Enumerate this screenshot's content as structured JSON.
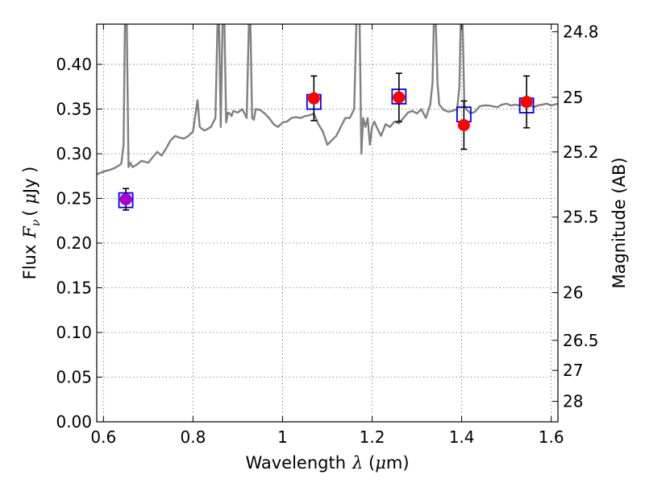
{
  "chart_data": {
    "type": "scatter",
    "xlabel": {
      "prefix": "Wavelength",
      "symbol": "λ",
      "unit_open": " (",
      "unit_mu": "μ",
      "unit_close": "m)"
    },
    "ylabel": {
      "prefix": "Flux",
      "symbol": "F",
      "sub": "ν",
      "unit_open": "( ",
      "unit_mu": "μ",
      "unit_close": "Jy )"
    },
    "y2label": "Magnitude (AB)",
    "xlim": [
      0.585,
      1.615
    ],
    "ylim": [
      0.0,
      0.445
    ],
    "grid": true,
    "x_ticks": [
      {
        "value": 0.6,
        "label": "0.6"
      },
      {
        "value": 0.8,
        "label": "0.8"
      },
      {
        "value": 1.0,
        "label": "1"
      },
      {
        "value": 1.2,
        "label": "1.2"
      },
      {
        "value": 1.4,
        "label": "1.4"
      },
      {
        "value": 1.6,
        "label": "1.6"
      }
    ],
    "y_ticks": [
      {
        "value": 0.0,
        "label": "0.00"
      },
      {
        "value": 0.05,
        "label": "0.05"
      },
      {
        "value": 0.1,
        "label": "0.10"
      },
      {
        "value": 0.15,
        "label": "0.15"
      },
      {
        "value": 0.2,
        "label": "0.20"
      },
      {
        "value": 0.25,
        "label": "0.25"
      },
      {
        "value": 0.3,
        "label": "0.30"
      },
      {
        "value": 0.35,
        "label": "0.35"
      },
      {
        "value": 0.4,
        "label": "0.40"
      }
    ],
    "y2_ticks": [
      {
        "value": 24.8,
        "label": "24.8"
      },
      {
        "value": 25.0,
        "label": "25"
      },
      {
        "value": 25.2,
        "label": "25.2"
      },
      {
        "value": 25.5,
        "label": "25.5"
      },
      {
        "value": 26.0,
        "label": "26"
      },
      {
        "value": 26.5,
        "label": "26.5"
      },
      {
        "value": 27.0,
        "label": "27"
      },
      {
        "value": 28.0,
        "label": "28"
      }
    ],
    "observed": [
      {
        "x": 0.65,
        "y": 0.249,
        "yerr": 0.012,
        "color": "#aa00cc"
      },
      {
        "x": 1.07,
        "y": 0.362,
        "yerr": 0.025,
        "color": "#ff0000"
      },
      {
        "x": 1.26,
        "y": 0.363,
        "yerr": 0.027,
        "color": "#ff0000"
      },
      {
        "x": 1.405,
        "y": 0.332,
        "yerr": 0.027,
        "color": "#ff0000"
      },
      {
        "x": 1.545,
        "y": 0.358,
        "yerr": 0.029,
        "color": "#ff0000"
      }
    ],
    "model_bands": [
      {
        "x": 0.65,
        "y": 0.248
      },
      {
        "x": 1.07,
        "y": 0.358
      },
      {
        "x": 1.26,
        "y": 0.364
      },
      {
        "x": 1.405,
        "y": 0.344
      },
      {
        "x": 1.545,
        "y": 0.354
      }
    ],
    "spectrum": {
      "color": "#808080",
      "x": [
        0.585,
        0.6,
        0.615,
        0.625,
        0.635,
        0.64,
        0.645,
        0.648,
        0.652,
        0.656,
        0.66,
        0.665,
        0.675,
        0.685,
        0.7,
        0.71,
        0.72,
        0.73,
        0.74,
        0.75,
        0.76,
        0.77,
        0.78,
        0.79,
        0.8,
        0.81,
        0.815,
        0.82,
        0.825,
        0.83,
        0.84,
        0.85,
        0.855,
        0.858,
        0.862,
        0.866,
        0.87,
        0.874,
        0.878,
        0.882,
        0.886,
        0.89,
        0.9,
        0.91,
        0.92,
        0.925,
        0.928,
        0.932,
        0.936,
        0.94,
        0.95,
        0.96,
        0.97,
        0.98,
        0.99,
        1.0,
        1.01,
        1.02,
        1.03,
        1.04,
        1.05,
        1.06,
        1.07,
        1.08,
        1.09,
        1.1,
        1.11,
        1.12,
        1.13,
        1.14,
        1.15,
        1.16,
        1.165,
        1.168,
        1.172,
        1.176,
        1.18,
        1.185,
        1.19,
        1.195,
        1.2,
        1.205,
        1.21,
        1.22,
        1.23,
        1.24,
        1.25,
        1.26,
        1.27,
        1.28,
        1.29,
        1.3,
        1.31,
        1.32,
        1.33,
        1.335,
        1.338,
        1.342,
        1.346,
        1.35,
        1.36,
        1.37,
        1.38,
        1.39,
        1.395,
        1.398,
        1.402,
        1.406,
        1.41,
        1.42,
        1.43,
        1.44,
        1.45,
        1.46,
        1.47,
        1.48,
        1.49,
        1.5,
        1.51,
        1.52,
        1.53,
        1.54,
        1.55,
        1.56,
        1.57,
        1.58,
        1.59,
        1.6,
        1.615
      ],
      "y": [
        0.277,
        0.28,
        0.282,
        0.284,
        0.287,
        0.289,
        0.31,
        0.45,
        0.45,
        0.285,
        0.29,
        0.285,
        0.288,
        0.292,
        0.29,
        0.296,
        0.302,
        0.298,
        0.306,
        0.315,
        0.32,
        0.318,
        0.317,
        0.32,
        0.325,
        0.36,
        0.33,
        0.328,
        0.326,
        0.327,
        0.33,
        0.34,
        0.45,
        0.45,
        0.33,
        0.45,
        0.45,
        0.335,
        0.346,
        0.345,
        0.342,
        0.348,
        0.346,
        0.35,
        0.34,
        0.45,
        0.45,
        0.34,
        0.338,
        0.35,
        0.349,
        0.345,
        0.34,
        0.333,
        0.33,
        0.335,
        0.336,
        0.34,
        0.341,
        0.34,
        0.342,
        0.343,
        0.345,
        0.333,
        0.325,
        0.31,
        0.315,
        0.32,
        0.33,
        0.34,
        0.34,
        0.35,
        0.45,
        0.45,
        0.45,
        0.3,
        0.34,
        0.33,
        0.34,
        0.31,
        0.33,
        0.336,
        0.33,
        0.32,
        0.333,
        0.33,
        0.336,
        0.334,
        0.34,
        0.346,
        0.348,
        0.345,
        0.35,
        0.34,
        0.355,
        0.38,
        0.45,
        0.45,
        0.38,
        0.355,
        0.349,
        0.347,
        0.348,
        0.35,
        0.375,
        0.45,
        0.45,
        0.355,
        0.35,
        0.345,
        0.347,
        0.353,
        0.354,
        0.354,
        0.353,
        0.352,
        0.355,
        0.356,
        0.354,
        0.355,
        0.354,
        0.355,
        0.356,
        0.352,
        0.354,
        0.355,
        0.356,
        0.354,
        0.356
      ]
    }
  }
}
